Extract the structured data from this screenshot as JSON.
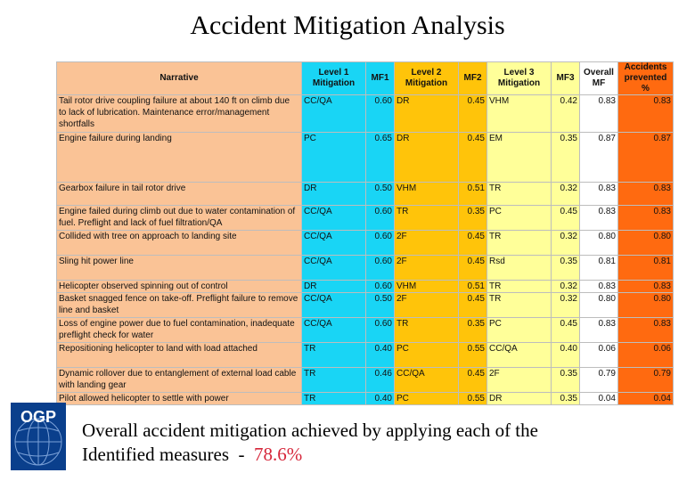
{
  "title": "Accident Mitigation Analysis",
  "colors": {
    "narrative": "#fac396",
    "level1": "#19d5f5",
    "level2": "#ffc40a",
    "level3": "#ffff99",
    "overall": "#ffffff",
    "accidents": "#ff6a10",
    "percentage": "#d6263a",
    "logo": "#0a3f8c"
  },
  "table": {
    "headers": {
      "narrative": "Narrative",
      "level1": "Level 1 Mitigation",
      "mf1": "MF1",
      "level2": "Level 2 Mitigation",
      "mf2": "MF2",
      "level3": "Level 3 Mitigation",
      "mf3": "MF3",
      "overall": "Overall MF",
      "accidents": "Accidents prevented %"
    },
    "rows": [
      {
        "narrative": "Tail rotor drive coupling failure at about 140 ft on climb due to lack of lubrication. Maintenance error/management shortfalls",
        "l1": "CC/QA",
        "mf1": "0.60",
        "l2": "DR",
        "mf2": "0.45",
        "l3": "VHM",
        "mf3": "0.42",
        "overall": "0.83",
        "acc": "0.83"
      },
      {
        "narrative": "Engine failure during landing",
        "l1": "PC",
        "mf1": "0.65",
        "l2": "DR",
        "mf2": "0.45",
        "l3": "EM",
        "mf3": "0.35",
        "overall": "0.87",
        "acc": "0.87"
      },
      {
        "narrative": "Gearbox failure in tail rotor drive",
        "l1": "DR",
        "mf1": "0.50",
        "l2": "VHM",
        "mf2": "0.51",
        "l3": "TR",
        "mf3": "0.32",
        "overall": "0.83",
        "acc": "0.83"
      },
      {
        "narrative": "Engine failed during climb out due to water contamination of fuel. Preflight and lack of fuel filtration/QA",
        "l1": "CC/QA",
        "mf1": "0.60",
        "l2": "TR",
        "mf2": "0.35",
        "l3": "PC",
        "mf3": "0.45",
        "overall": "0.83",
        "acc": "0.83"
      },
      {
        "narrative": "Collided with tree on approach to landing site",
        "l1": "CC/QA",
        "mf1": "0.60",
        "l2": "2F",
        "mf2": "0.45",
        "l3": "TR",
        "mf3": "0.32",
        "overall": "0.80",
        "acc": "0.80"
      },
      {
        "narrative": "Sling hit power line",
        "l1": "CC/QA",
        "mf1": "0.60",
        "l2": "2F",
        "mf2": "0.45",
        "l3": "Rsd",
        "mf3": "0.35",
        "overall": "0.81",
        "acc": "0.81"
      },
      {
        "narrative": "Helicopter observed spinning out of control",
        "l1": "DR",
        "mf1": "0.60",
        "l2": "VHM",
        "mf2": "0.51",
        "l3": "TR",
        "mf3": "0.32",
        "overall": "0.83",
        "acc": "0.83"
      },
      {
        "narrative": "Basket snagged fence on take-off. Preflight failure to remove line and basket",
        "l1": "CC/QA",
        "mf1": "0.50",
        "l2": "2F",
        "mf2": "0.45",
        "l3": "TR",
        "mf3": "0.32",
        "overall": "0.80",
        "acc": "0.80"
      },
      {
        "narrative": "Loss of engine power due to fuel contamination, inadequate preflight check for water",
        "l1": "CC/QA",
        "mf1": "0.60",
        "l2": "TR",
        "mf2": "0.35",
        "l3": "PC",
        "mf3": "0.45",
        "overall": "0.83",
        "acc": "0.83"
      },
      {
        "narrative": "Repositioning helicopter to land with load attached",
        "l1": "TR",
        "mf1": "0.40",
        "l2": "PC",
        "mf2": "0.55",
        "l3": "CC/QA",
        "mf3": "0.40",
        "overall": "0.06",
        "acc": "0.06"
      },
      {
        "narrative": "Dynamic rollover due to entanglement of external load cable with landing gear",
        "l1": "TR",
        "mf1": "0.46",
        "l2": "CC/QA",
        "mf2": "0.45",
        "l3": "2F",
        "mf3": "0.35",
        "overall": "0.79",
        "acc": "0.79"
      },
      {
        "narrative": "Pilot allowed helicopter to settle with power",
        "l1": "TR",
        "mf1": "0.40",
        "l2": "PC",
        "mf2": "0.55",
        "l3": "DR",
        "mf3": "0.35",
        "overall": "0.04",
        "acc": "0.04"
      }
    ]
  },
  "logo": {
    "text": "OGP"
  },
  "caption": {
    "line1": "Overall accident mitigation achieved by applying each of the",
    "line2": "Identified measures  -  ",
    "value": "78.6%"
  }
}
